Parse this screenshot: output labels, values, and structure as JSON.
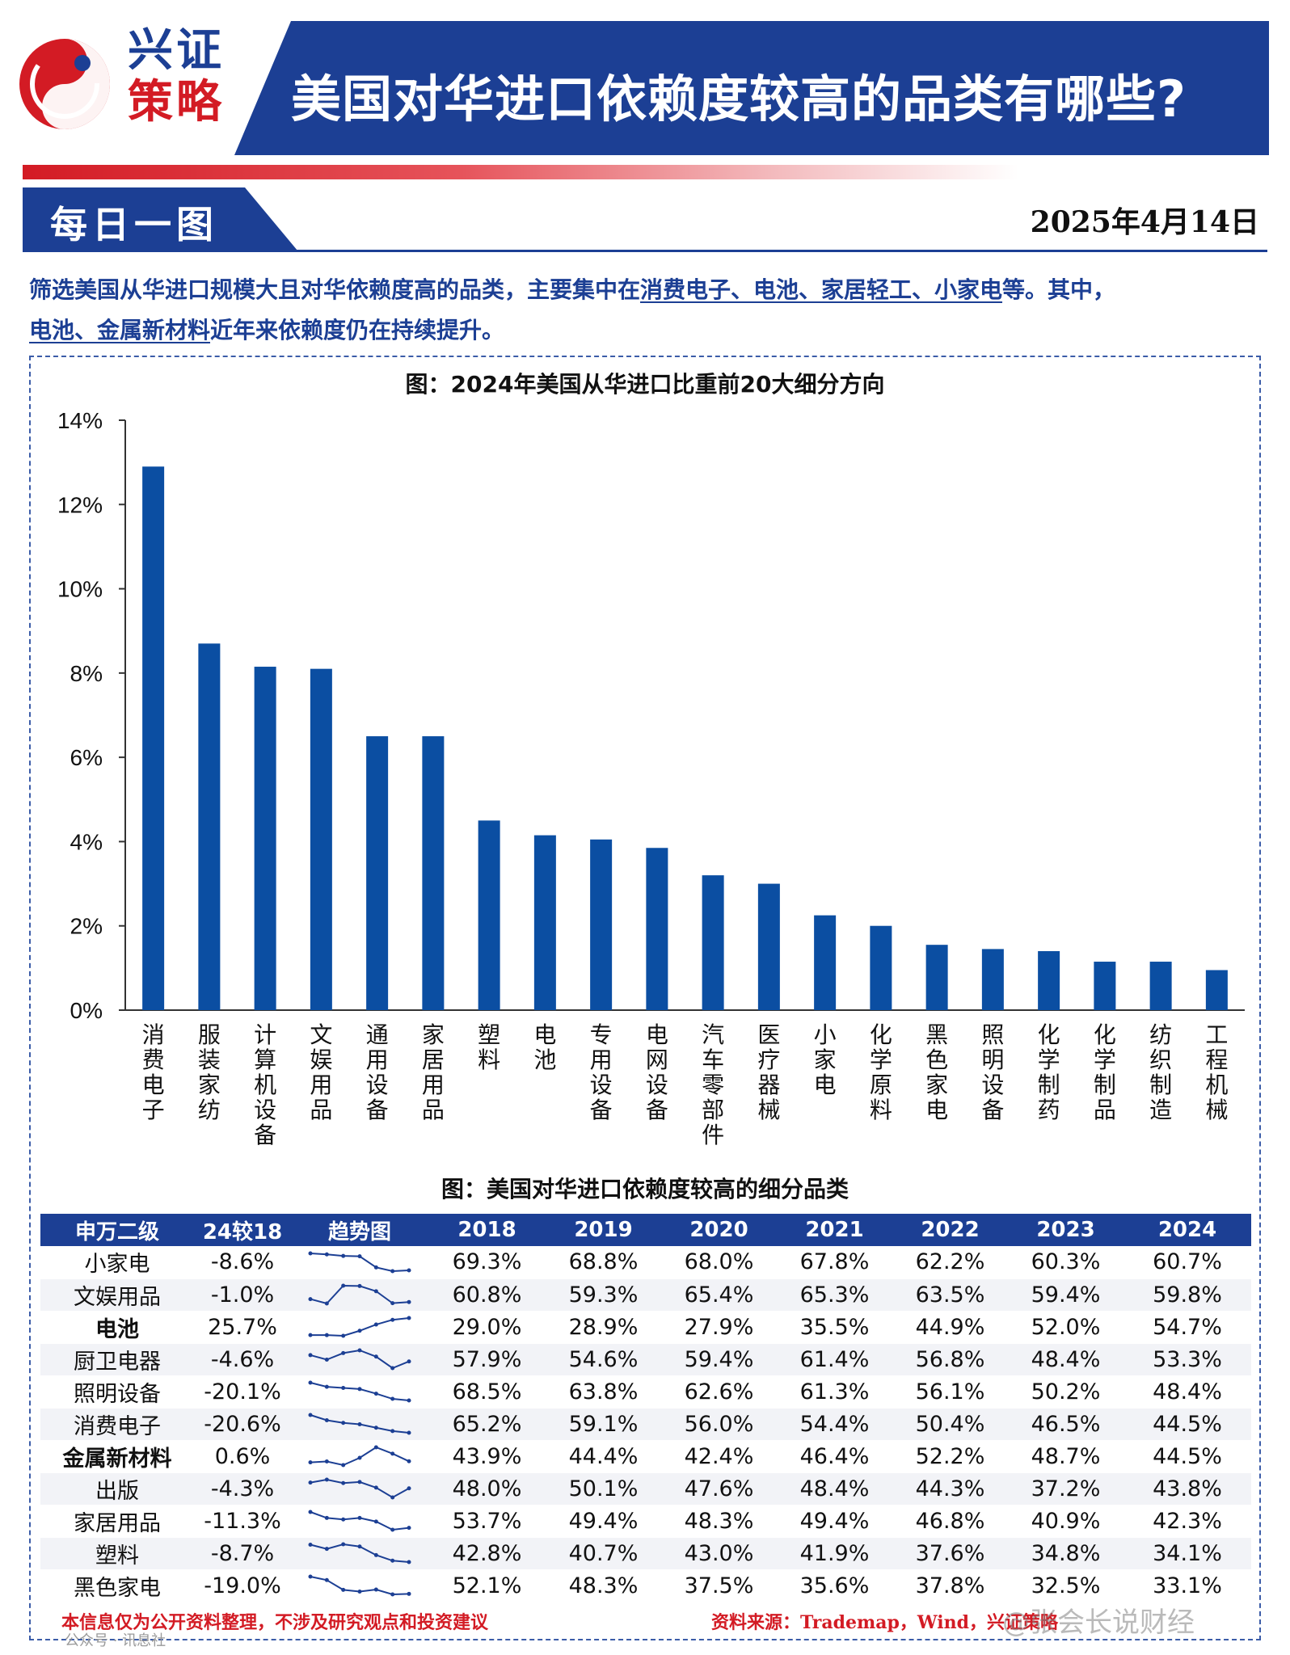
{
  "header": {
    "brand_line1": "兴证",
    "brand_line2": "策略",
    "title": "美国对华进口依赖度较高的品类有哪些?"
  },
  "subheader": {
    "tab_label": "每日一图",
    "date": "2025年4月14日"
  },
  "intro": {
    "p1": "筛选美国从华进口规模大且对华依赖度高的品类，主要集中在",
    "u1": "消费电子、电池、家居轻工、小家电",
    "p2": "等。其中，",
    "u2": "电池、金属新材料",
    "p3": "近年来依赖度仍在持续提升。"
  },
  "colors": {
    "brand_blue": "#1c3f94",
    "brand_red": "#d31b24",
    "bar": "#0b4ea2"
  },
  "chart_data": {
    "type": "bar",
    "title": "图：2024年美国从华进口比重前20大细分方向",
    "xlabel": "",
    "ylabel": "",
    "ylim": [
      0,
      14
    ],
    "yticks": [
      "0%",
      "2%",
      "4%",
      "6%",
      "8%",
      "10%",
      "12%",
      "14%"
    ],
    "grid": false,
    "categories": [
      "消费电子",
      "服装家纺",
      "计算机设备",
      "文娱用品",
      "通用设备",
      "家居用品",
      "塑料",
      "电池",
      "专用设备",
      "电网设备",
      "汽车零部件",
      "医疗器械",
      "小家电",
      "化学原料",
      "黑色家电",
      "照明设备",
      "化学制药",
      "化学制品",
      "纺织制造",
      "工程机械"
    ],
    "values": [
      12.9,
      8.7,
      8.15,
      8.1,
      6.5,
      6.5,
      4.5,
      4.15,
      4.05,
      3.85,
      3.2,
      3.0,
      2.25,
      2.0,
      1.55,
      1.45,
      1.4,
      1.15,
      1.15,
      0.95
    ]
  },
  "table": {
    "title": "图：美国对华进口依赖度较高的细分品类",
    "headers": [
      "申万二级",
      "24较18",
      "趋势图",
      "2018",
      "2019",
      "2020",
      "2021",
      "2022",
      "2023",
      "2024"
    ],
    "rows": [
      {
        "name": "小家电",
        "bold": false,
        "change": "-8.6%",
        "values": [
          "69.3%",
          "68.8%",
          "68.0%",
          "67.8%",
          "62.2%",
          "60.3%",
          "60.7%"
        ],
        "trend": [
          69.3,
          68.8,
          68.0,
          67.8,
          62.2,
          60.3,
          60.7
        ]
      },
      {
        "name": "文娱用品",
        "bold": false,
        "change": "-1.0%",
        "values": [
          "60.8%",
          "59.3%",
          "65.4%",
          "65.3%",
          "63.5%",
          "59.4%",
          "59.8%"
        ],
        "trend": [
          60.8,
          59.3,
          65.4,
          65.3,
          63.5,
          59.4,
          59.8
        ]
      },
      {
        "name": "电池",
        "bold": true,
        "change": "25.7%",
        "values": [
          "29.0%",
          "28.9%",
          "27.9%",
          "35.5%",
          "44.9%",
          "52.0%",
          "54.7%"
        ],
        "trend": [
          29.0,
          28.9,
          27.9,
          35.5,
          44.9,
          52.0,
          54.7
        ]
      },
      {
        "name": "厨卫电器",
        "bold": false,
        "change": "-4.6%",
        "values": [
          "57.9%",
          "54.6%",
          "59.4%",
          "61.4%",
          "56.8%",
          "48.4%",
          "53.3%"
        ],
        "trend": [
          57.9,
          54.6,
          59.4,
          61.4,
          56.8,
          48.4,
          53.3
        ]
      },
      {
        "name": "照明设备",
        "bold": false,
        "change": "-20.1%",
        "values": [
          "68.5%",
          "63.8%",
          "62.6%",
          "61.3%",
          "56.1%",
          "50.2%",
          "48.4%"
        ],
        "trend": [
          68.5,
          63.8,
          62.6,
          61.3,
          56.1,
          50.2,
          48.4
        ]
      },
      {
        "name": "消费电子",
        "bold": false,
        "change": "-20.6%",
        "values": [
          "65.2%",
          "59.1%",
          "56.0%",
          "54.4%",
          "50.4%",
          "46.5%",
          "44.5%"
        ],
        "trend": [
          65.2,
          59.1,
          56.0,
          54.4,
          50.4,
          46.5,
          44.5
        ]
      },
      {
        "name": "金属新材料",
        "bold": true,
        "change": "0.6%",
        "values": [
          "43.9%",
          "44.4%",
          "42.4%",
          "46.4%",
          "52.2%",
          "48.7%",
          "44.5%"
        ],
        "trend": [
          43.9,
          44.4,
          42.4,
          46.4,
          52.2,
          48.7,
          44.5
        ]
      },
      {
        "name": "出版",
        "bold": false,
        "change": "-4.3%",
        "values": [
          "48.0%",
          "50.1%",
          "47.6%",
          "48.4%",
          "44.3%",
          "37.2%",
          "43.8%"
        ],
        "trend": [
          48.0,
          50.1,
          47.6,
          48.4,
          44.3,
          37.2,
          43.8
        ]
      },
      {
        "name": "家居用品",
        "bold": false,
        "change": "-11.3%",
        "values": [
          "53.7%",
          "49.4%",
          "48.3%",
          "49.4%",
          "46.8%",
          "40.9%",
          "42.3%"
        ],
        "trend": [
          53.7,
          49.4,
          48.3,
          49.4,
          46.8,
          40.9,
          42.3
        ]
      },
      {
        "name": "塑料",
        "bold": false,
        "change": "-8.7%",
        "values": [
          "42.8%",
          "40.7%",
          "43.0%",
          "41.9%",
          "37.6%",
          "34.8%",
          "34.1%"
        ],
        "trend": [
          42.8,
          40.7,
          43.0,
          41.9,
          37.6,
          34.8,
          34.1
        ]
      },
      {
        "name": "黑色家电",
        "bold": false,
        "change": "-19.0%",
        "values": [
          "52.1%",
          "48.3%",
          "37.5%",
          "35.6%",
          "37.8%",
          "32.5%",
          "33.1%"
        ],
        "trend": [
          52.1,
          48.3,
          37.5,
          35.6,
          37.8,
          32.5,
          33.1
        ]
      }
    ]
  },
  "footer": {
    "disclaimer": "本信息仅为公开资料整理，不涉及研究观点和投资建议",
    "source": "资料来源：Trademap，Wind，兴证策略",
    "watermark_account": "公众号 · 讯息社",
    "watermark_weibo": "@张会长说财经"
  }
}
